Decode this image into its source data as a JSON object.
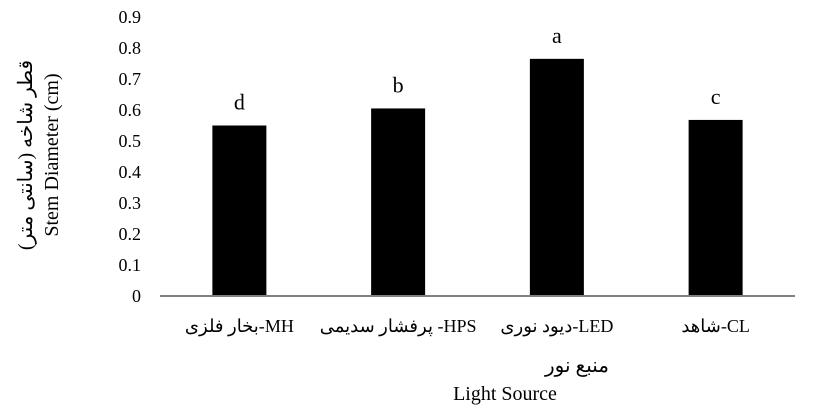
{
  "chart_data": {
    "type": "bar",
    "categories": [
      "MH-بخار فلزی",
      "HPS- پرفشار سدیمی",
      "LED-دیود نوری",
      "CL-شاهد"
    ],
    "values": [
      0.55,
      0.605,
      0.765,
      0.568
    ],
    "significance_letters": [
      "d",
      "b",
      "a",
      "c"
    ],
    "ylim": [
      0,
      0.9
    ],
    "yticks": [
      0,
      0.1,
      0.2,
      0.3,
      0.4,
      0.5,
      0.6,
      0.7,
      0.8,
      0.9
    ],
    "ytick_labels": [
      "0",
      "0.1",
      "0.2",
      "0.3",
      "0.4",
      "0.5",
      "0.6",
      "0.7",
      "0.8",
      "0.9"
    ],
    "xlabel_fa": "منبع نور",
    "xlabel_en": "Light Source",
    "ylabel_fa": "قطر شاخه (سانتی متر)",
    "ylabel_en": "Stem Diameter (cm)",
    "bar_color": "#000000",
    "grid": false
  }
}
